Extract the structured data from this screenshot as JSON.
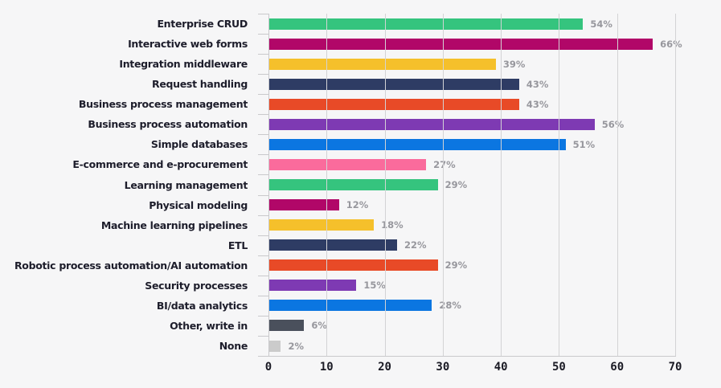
{
  "chart_data": {
    "type": "bar",
    "orientation": "horizontal",
    "title": "",
    "categories": [
      "Enterprise CRUD",
      "Interactive web forms",
      "Integration middleware",
      "Request handling",
      "Business process management",
      "Business process automation",
      "Simple databases",
      "E-commerce and e-procurement",
      "Learning management",
      "Physical modeling",
      "Machine learning pipelines",
      "ETL",
      "Robotic process automation/AI automation",
      "Security processes",
      "BI/data analytics",
      "Other, write in",
      "None"
    ],
    "values": [
      54,
      66,
      39,
      43,
      43,
      56,
      51,
      27,
      29,
      12,
      18,
      22,
      29,
      15,
      28,
      6,
      2
    ],
    "value_labels": [
      "54%",
      "66%",
      "39%",
      "43%",
      "43%",
      "56%",
      "51%",
      "27%",
      "29%",
      "12%",
      "18%",
      "22%",
      "29%",
      "15%",
      "28%",
      "6%",
      "2%"
    ],
    "bar_colors": [
      "#35c47e",
      "#b10768",
      "#f5c02b",
      "#2e3c64",
      "#e84a27",
      "#7e3ab3",
      "#0b76e1",
      "#fa6b9c",
      "#35c47e",
      "#b10768",
      "#f5c02b",
      "#2e3c64",
      "#e84a27",
      "#7e3ab3",
      "#0b76e1",
      "#4a505c",
      "#cbcbcb"
    ],
    "xlim": [
      0,
      70
    ],
    "x_ticks": [
      "0",
      "10",
      "20",
      "30",
      "40",
      "50",
      "60",
      "70"
    ],
    "grid": true,
    "legend_position": "none"
  },
  "style": {
    "background": "#f6f6f7",
    "grid_color": "#d3d3d5",
    "axis_color": "#c9c9cc",
    "category_label_color": "#1d1d2b",
    "value_label_color": "#97979d",
    "tick_label_color": "#1a1a24"
  }
}
